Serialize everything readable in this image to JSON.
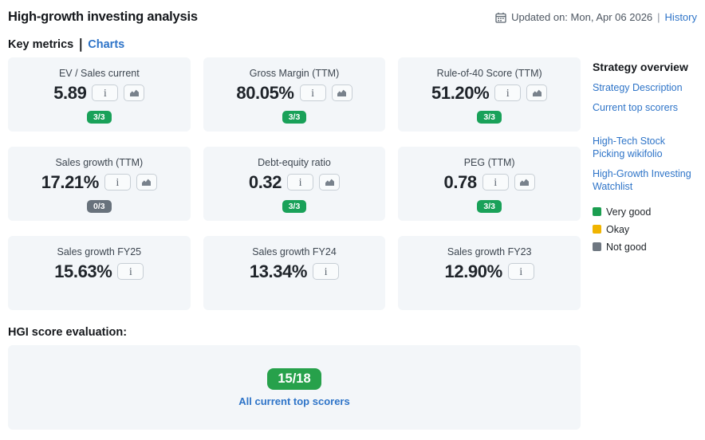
{
  "header": {
    "title": "High-growth investing analysis",
    "updated_label": "Updated on: Mon, Apr 06 2026",
    "separator": "|",
    "history_link": "History"
  },
  "tabs": {
    "key_metrics": "Key metrics",
    "separator": "|",
    "charts": "Charts"
  },
  "metrics": [
    {
      "label": "EV / Sales current",
      "value": "5.89",
      "badge": "3/3",
      "badge_type": "good",
      "has_chart": true
    },
    {
      "label": "Gross Margin (TTM)",
      "value": "80.05%",
      "badge": "3/3",
      "badge_type": "good",
      "has_chart": true
    },
    {
      "label": "Rule-of-40 Score (TTM)",
      "value": "51.20%",
      "badge": "3/3",
      "badge_type": "good",
      "has_chart": true
    },
    {
      "label": "Sales growth (TTM)",
      "value": "17.21%",
      "badge": "0/3",
      "badge_type": "neutral",
      "has_chart": true
    },
    {
      "label": "Debt-equity ratio",
      "value": "0.32",
      "badge": "3/3",
      "badge_type": "good",
      "has_chart": true
    },
    {
      "label": "PEG (TTM)",
      "value": "0.78",
      "badge": "3/3",
      "badge_type": "good",
      "has_chart": true
    },
    {
      "label": "Sales growth FY25",
      "value": "15.63%",
      "badge": null,
      "badge_type": null,
      "has_chart": false
    },
    {
      "label": "Sales growth FY24",
      "value": "13.34%",
      "badge": null,
      "badge_type": null,
      "has_chart": false
    },
    {
      "label": "Sales growth FY23",
      "value": "12.90%",
      "badge": null,
      "badge_type": null,
      "has_chart": false
    }
  ],
  "icons": {
    "info_glyph": "i",
    "calendar": "calendar-icon",
    "chart": "bar-chart-icon"
  },
  "sidebar": {
    "heading": "Strategy overview",
    "links": [
      "Strategy Description",
      "Current top scorers"
    ],
    "external_links": [
      "High-Tech Stock Picking wikifolio",
      "High-Growth Investing Watchlist"
    ],
    "legend": [
      {
        "label": "Very good",
        "color": "#1b9e50"
      },
      {
        "label": "Okay",
        "color": "#f0b400"
      },
      {
        "label": "Not good",
        "color": "#6e7781"
      }
    ]
  },
  "hgi": {
    "heading": "HGI score evaluation:",
    "score": "15/18",
    "link": "All current top scorers"
  },
  "colors": {
    "link_blue": "#2e74c8",
    "badge_green": "#19a159",
    "badge_gray": "#68727c",
    "hgi_green": "#27a14b",
    "card_bg": "#f3f6f9"
  }
}
